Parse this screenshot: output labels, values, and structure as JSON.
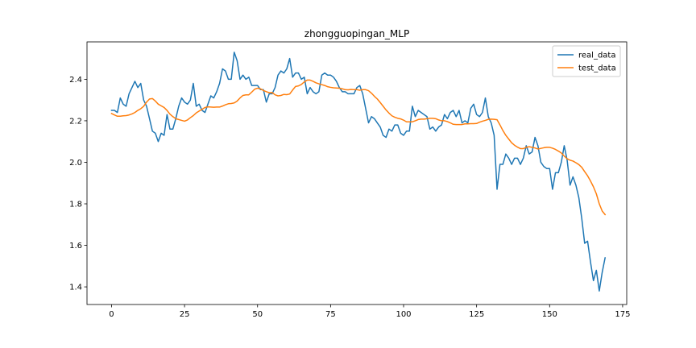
{
  "chart_data": {
    "type": "line",
    "title": "zhongguopingan_MLP",
    "xlabel": "",
    "ylabel": "",
    "xlim": [
      -8.4,
      176.4
    ],
    "ylim": [
      1.315,
      2.58
    ],
    "x_ticks": [
      0,
      25,
      50,
      75,
      100,
      125,
      150,
      175
    ],
    "y_ticks": [
      1.4,
      1.6,
      1.8,
      2.0,
      2.2,
      2.4
    ],
    "x_tick_labels": [
      "0",
      "25",
      "50",
      "75",
      "100",
      "125",
      "150",
      "175"
    ],
    "y_tick_labels": [
      "1.4",
      "1.6",
      "1.8",
      "2.0",
      "2.2",
      "2.4"
    ],
    "grid": false,
    "legend_position": "upper right",
    "series": [
      {
        "name": "real_data",
        "color": "#1f77b4",
        "values": [
          2.25,
          2.25,
          2.24,
          2.31,
          2.28,
          2.27,
          2.33,
          2.36,
          2.39,
          2.36,
          2.38,
          2.3,
          2.27,
          2.21,
          2.15,
          2.14,
          2.1,
          2.14,
          2.13,
          2.23,
          2.16,
          2.16,
          2.21,
          2.27,
          2.31,
          2.29,
          2.28,
          2.3,
          2.38,
          2.27,
          2.28,
          2.25,
          2.24,
          2.28,
          2.32,
          2.31,
          2.34,
          2.38,
          2.45,
          2.44,
          2.4,
          2.4,
          2.53,
          2.49,
          2.4,
          2.42,
          2.4,
          2.41,
          2.37,
          2.37,
          2.37,
          2.35,
          2.35,
          2.29,
          2.33,
          2.33,
          2.36,
          2.42,
          2.44,
          2.43,
          2.45,
          2.5,
          2.41,
          2.43,
          2.43,
          2.4,
          2.41,
          2.33,
          2.36,
          2.34,
          2.33,
          2.34,
          2.42,
          2.43,
          2.42,
          2.42,
          2.41,
          2.39,
          2.36,
          2.34,
          2.34,
          2.33,
          2.33,
          2.33,
          2.36,
          2.37,
          2.33,
          2.26,
          2.19,
          2.22,
          2.21,
          2.19,
          2.17,
          2.13,
          2.12,
          2.16,
          2.15,
          2.18,
          2.18,
          2.14,
          2.13,
          2.15,
          2.15,
          2.27,
          2.22,
          2.25,
          2.24,
          2.23,
          2.22,
          2.16,
          2.17,
          2.15,
          2.17,
          2.18,
          2.23,
          2.21,
          2.24,
          2.25,
          2.22,
          2.25,
          2.19,
          2.2,
          2.19,
          2.26,
          2.28,
          2.23,
          2.22,
          2.24,
          2.31,
          2.22,
          2.19,
          2.13,
          1.87,
          1.99,
          1.99,
          2.04,
          2.02,
          1.99,
          2.02,
          2.02,
          1.99,
          2.02,
          2.08,
          2.04,
          2.05,
          2.12,
          2.08,
          2.0,
          1.98,
          1.97,
          1.97,
          1.87,
          1.95,
          1.95,
          2.0,
          2.08,
          2.01,
          1.89,
          1.93,
          1.89,
          1.83,
          1.73,
          1.61,
          1.62,
          1.52,
          1.43,
          1.48,
          1.38,
          1.47,
          1.54
        ]
      },
      {
        "name": "test_data",
        "color": "#ff7f0e",
        "values": [
          2.235,
          2.228,
          2.222,
          2.222,
          2.224,
          2.225,
          2.228,
          2.233,
          2.24,
          2.25,
          2.258,
          2.27,
          2.29,
          2.305,
          2.307,
          2.295,
          2.28,
          2.272,
          2.264,
          2.25,
          2.232,
          2.22,
          2.21,
          2.206,
          2.202,
          2.198,
          2.204,
          2.215,
          2.225,
          2.238,
          2.247,
          2.255,
          2.264,
          2.267,
          2.266,
          2.265,
          2.266,
          2.266,
          2.271,
          2.277,
          2.282,
          2.283,
          2.286,
          2.295,
          2.31,
          2.322,
          2.325,
          2.325,
          2.338,
          2.352,
          2.357,
          2.354,
          2.346,
          2.34,
          2.335,
          2.336,
          2.325,
          2.32,
          2.322,
          2.327,
          2.326,
          2.329,
          2.348,
          2.365,
          2.368,
          2.375,
          2.387,
          2.396,
          2.396,
          2.39,
          2.383,
          2.378,
          2.374,
          2.37,
          2.364,
          2.361,
          2.359,
          2.358,
          2.357,
          2.354,
          2.35,
          2.349,
          2.351,
          2.35,
          2.35,
          2.347,
          2.35,
          2.35,
          2.345,
          2.333,
          2.318,
          2.305,
          2.288,
          2.27,
          2.252,
          2.237,
          2.224,
          2.217,
          2.212,
          2.209,
          2.203,
          2.195,
          2.195,
          2.195,
          2.2,
          2.206,
          2.208,
          2.208,
          2.21,
          2.212,
          2.212,
          2.21,
          2.204,
          2.2,
          2.2,
          2.196,
          2.19,
          2.183,
          2.182,
          2.182,
          2.182,
          2.185,
          2.185,
          2.186,
          2.186,
          2.187,
          2.193,
          2.198,
          2.202,
          2.207,
          2.208,
          2.207,
          2.205,
          2.18,
          2.153,
          2.13,
          2.112,
          2.094,
          2.082,
          2.073,
          2.066,
          2.066,
          2.072,
          2.075,
          2.072,
          2.069,
          2.064,
          2.067,
          2.07,
          2.072,
          2.072,
          2.068,
          2.062,
          2.054,
          2.045,
          2.03,
          2.017,
          2.01,
          2.006,
          1.998,
          1.989,
          1.976,
          1.955,
          1.935,
          1.91,
          1.882,
          1.848,
          1.8,
          1.765,
          1.748
        ]
      }
    ]
  }
}
